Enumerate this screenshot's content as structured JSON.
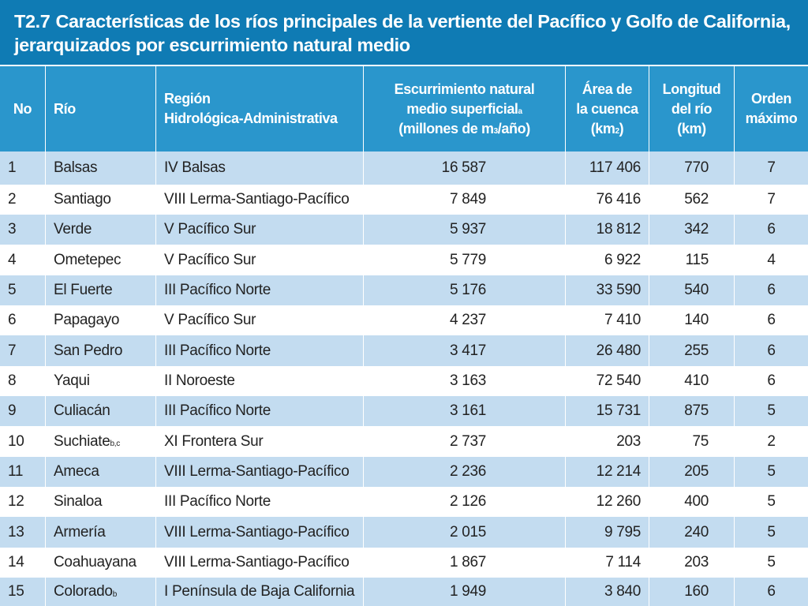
{
  "title": {
    "code": "T2.7",
    "line1": "Características de los ríos principales de la vertiente del Pacífico y Golfo de California,",
    "line2": "jerarquizados por escurrimiento natural medio"
  },
  "headers": {
    "no": "No",
    "rio": "Río",
    "region_l1": "Región",
    "region_l2": "Hidrológica-Administrativa",
    "esc_l1": "Escurrimiento natural",
    "esc_l2": "medio superficial",
    "esc_l2_sup": "a",
    "esc_l3a": "(millones de m",
    "esc_l3_sup": "3",
    "esc_l3b": "/año)",
    "area_l1": "Área de",
    "area_l2": "la cuenca",
    "area_l3a": "(km",
    "area_l3_sup": "2",
    "area_l3b": ")",
    "long_l1": "Longitud",
    "long_l2": "del río",
    "long_l3": "(km)",
    "orden_l1": "Orden",
    "orden_l2": "máximo"
  },
  "rows": [
    {
      "no": "1",
      "rio": "Balsas",
      "rio_sup": "",
      "region": "IV Balsas",
      "esc": "16 587",
      "area": "117 406",
      "long": "770",
      "orden": "7"
    },
    {
      "no": "2",
      "rio": "Santiago",
      "rio_sup": "",
      "region": "VIII Lerma-Santiago-Pacífico",
      "esc": "7 849",
      "area": "76 416",
      "long": "562",
      "orden": "7"
    },
    {
      "no": "3",
      "rio": "Verde",
      "rio_sup": "",
      "region": "V Pacífico Sur",
      "esc": "5 937",
      "area": "18 812",
      "long": "342",
      "orden": "6"
    },
    {
      "no": "4",
      "rio": "Ometepec",
      "rio_sup": "",
      "region": "V Pacífico Sur",
      "esc": "5 779",
      "area": "6 922",
      "long": "115",
      "orden": "4"
    },
    {
      "no": "5",
      "rio": "El Fuerte",
      "rio_sup": "",
      "region": "III Pacífico Norte",
      "esc": "5 176",
      "area": "33 590",
      "long": "540",
      "orden": "6"
    },
    {
      "no": "6",
      "rio": "Papagayo",
      "rio_sup": "",
      "region": "V Pacífico Sur",
      "esc": "4 237",
      "area": "7 410",
      "long": "140",
      "orden": "6"
    },
    {
      "no": "7",
      "rio": "San Pedro",
      "rio_sup": "",
      "region": "III Pacífico Norte",
      "esc": "3 417",
      "area": "26 480",
      "long": "255",
      "orden": "6"
    },
    {
      "no": "8",
      "rio": "Yaqui",
      "rio_sup": "",
      "region": "II Noroeste",
      "esc": "3 163",
      "area": "72 540",
      "long": "410",
      "orden": "6"
    },
    {
      "no": "9",
      "rio": "Culiacán",
      "rio_sup": "",
      "region": "III Pacífico Norte",
      "esc": "3 161",
      "area": "15 731",
      "long": "875",
      "orden": "5"
    },
    {
      "no": "10",
      "rio": "Suchiate",
      "rio_sup": "b,c",
      "region": "XI Frontera Sur",
      "esc": "2 737",
      "area": "203",
      "long": "75",
      "orden": "2"
    },
    {
      "no": "11",
      "rio": "Ameca",
      "rio_sup": "",
      "region": "VIII Lerma-Santiago-Pacífico",
      "esc": "2 236",
      "area": "12 214",
      "long": "205",
      "orden": "5"
    },
    {
      "no": "12",
      "rio": "Sinaloa",
      "rio_sup": "",
      "region": "III Pacífico Norte",
      "esc": "2 126",
      "area": "12 260",
      "long": "400",
      "orden": "5"
    },
    {
      "no": "13",
      "rio": "Armería",
      "rio_sup": "",
      "region": "VIII Lerma-Santiago-Pacífico",
      "esc": "2 015",
      "area": "9 795",
      "long": "240",
      "orden": "5"
    },
    {
      "no": "14",
      "rio": "Coahuayana",
      "rio_sup": "",
      "region": "VIII Lerma-Santiago-Pacífico",
      "esc": "1 867",
      "area": "7 114",
      "long": "203",
      "orden": "5"
    },
    {
      "no": "15",
      "rio": "Colorado",
      "rio_sup": "b",
      "region": "I Península de Baja California",
      "esc": "1 949",
      "area": "3 840",
      "long": "160",
      "orden": "6"
    }
  ],
  "colors": {
    "title_bg": "#0f7bb4",
    "header_bg": "#2a96cc",
    "row_alt_bg": "#c3dcf0"
  }
}
